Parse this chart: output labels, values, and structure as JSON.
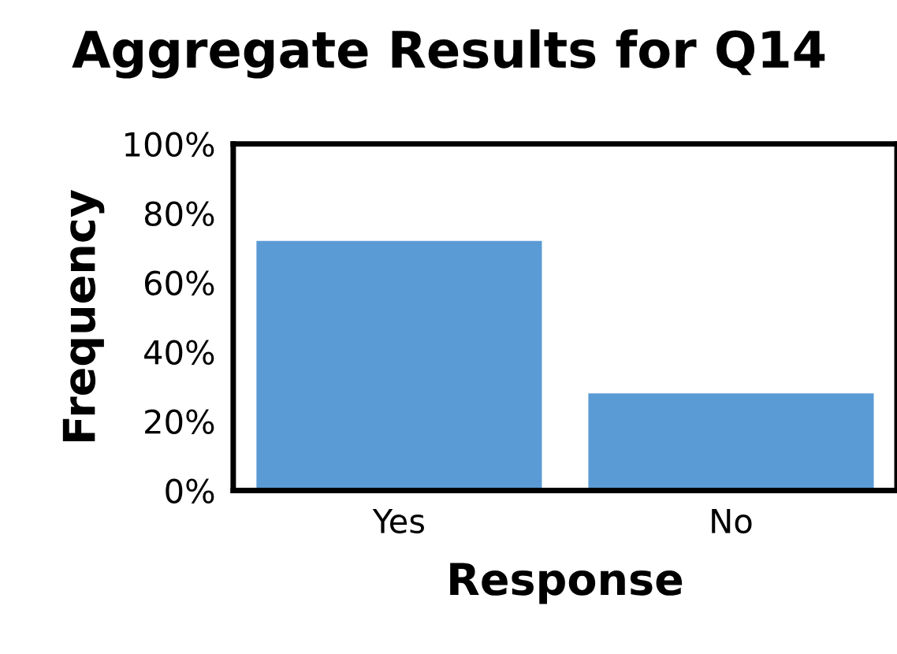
{
  "chart_data": {
    "type": "bar",
    "title": "Aggregate Results for Q14",
    "xlabel": "Response",
    "ylabel": "Frequency",
    "categories": [
      "Yes",
      "No"
    ],
    "values": [
      72,
      28
    ],
    "color": "#5b9bd5",
    "ylim": [
      0,
      100
    ],
    "yticks": [
      {
        "value": 0,
        "label": "0%"
      },
      {
        "value": 20,
        "label": "20%"
      },
      {
        "value": 40,
        "label": "40%"
      },
      {
        "value": 60,
        "label": "60%"
      },
      {
        "value": 80,
        "label": "80%"
      },
      {
        "value": 100,
        "label": "100%"
      }
    ],
    "grid": false,
    "legend": false
  }
}
